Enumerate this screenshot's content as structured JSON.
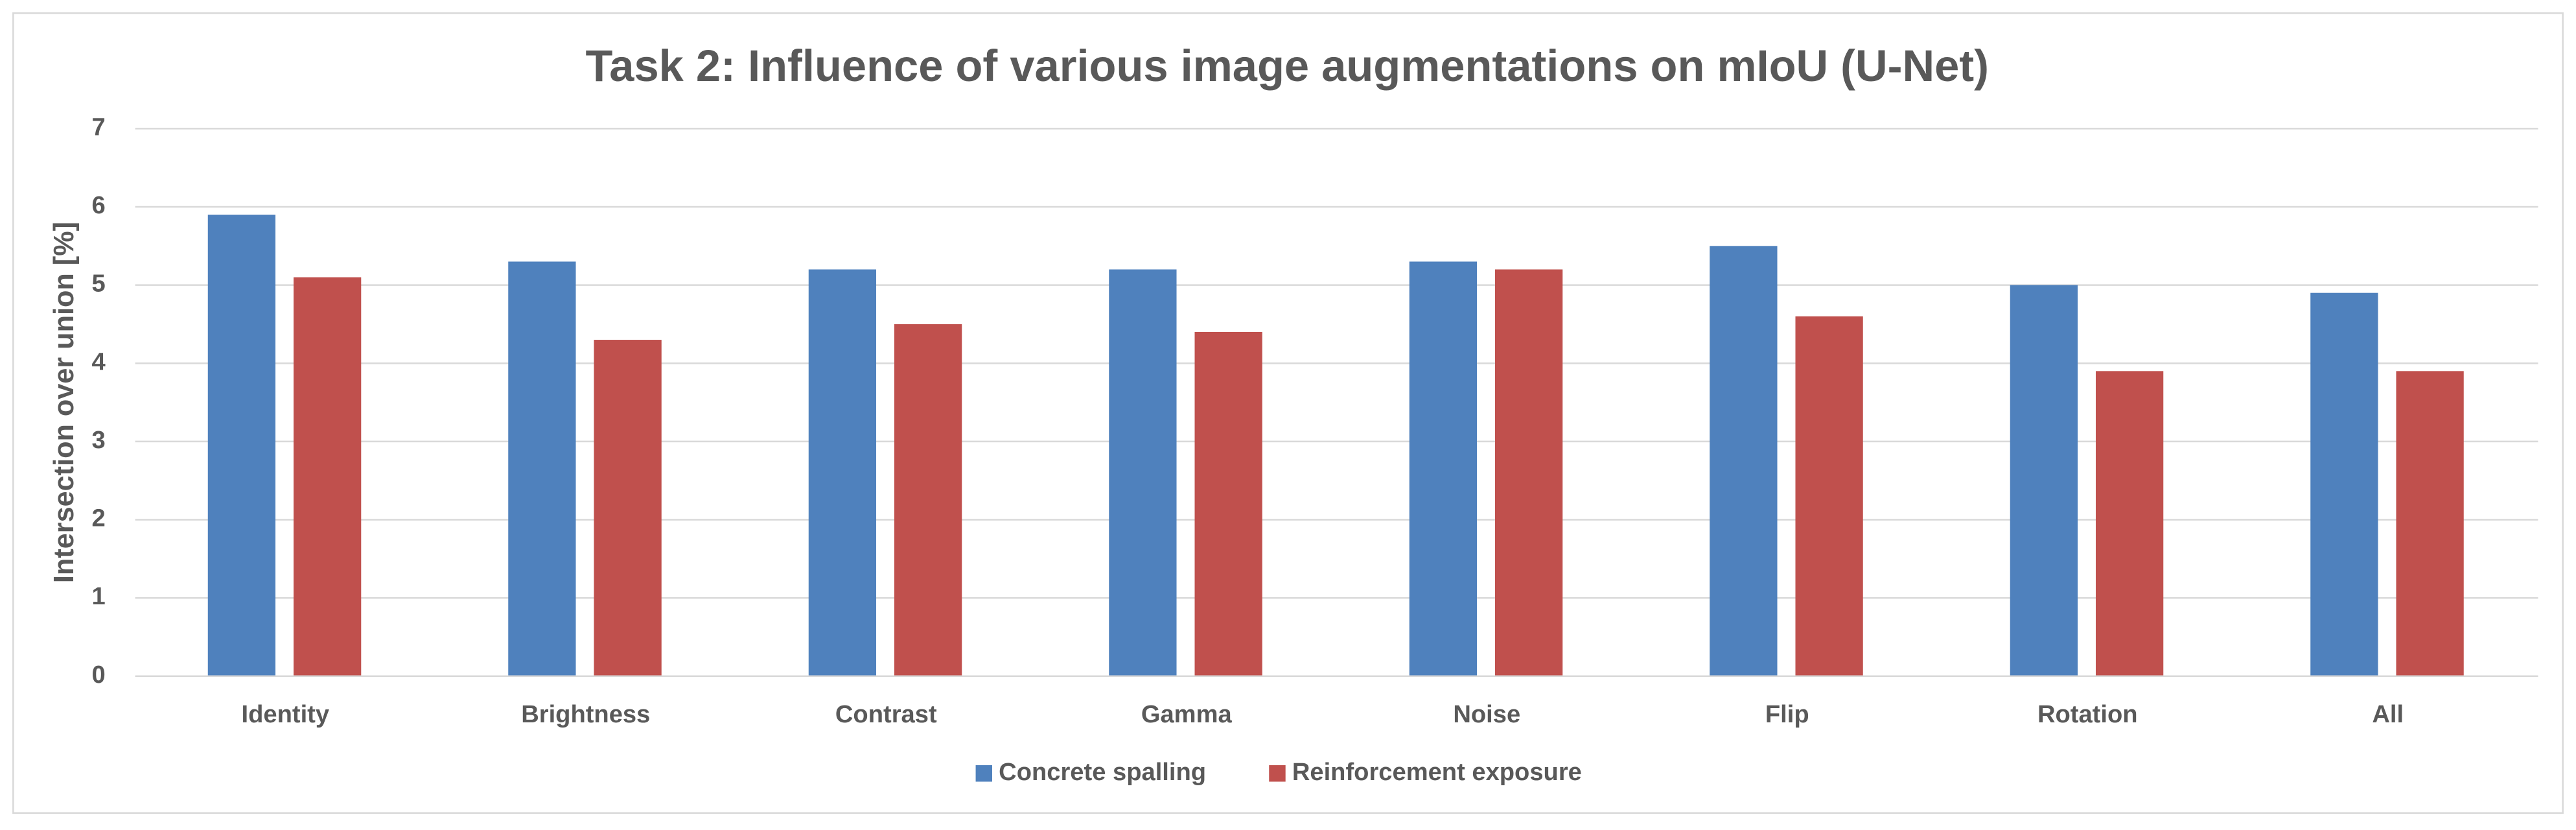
{
  "chart_data": {
    "type": "bar",
    "title": "Task 2: Influence of various image augmentations on mIoU (U-Net)",
    "y_label": "Intersection over union [%]",
    "categories": [
      "Identity",
      "Brightness",
      "Contrast",
      "Gamma",
      "Noise",
      "Flip",
      "Rotation",
      "All"
    ],
    "series": [
      {
        "name": "Concrete spalling",
        "color": "#4f81bd",
        "values": [
          5.9,
          5.3,
          5.2,
          5.2,
          5.3,
          5.5,
          5.0,
          4.9
        ]
      },
      {
        "name": "Reinforcement exposure",
        "color": "#c0504d",
        "values": [
          5.1,
          4.3,
          4.5,
          4.4,
          5.2,
          4.6,
          3.9,
          3.9
        ]
      }
    ],
    "ylim": [
      0,
      7
    ],
    "yticks": [
      0,
      1,
      2,
      3,
      4,
      5,
      6,
      7
    ],
    "grid": true,
    "legend": "bottom"
  }
}
